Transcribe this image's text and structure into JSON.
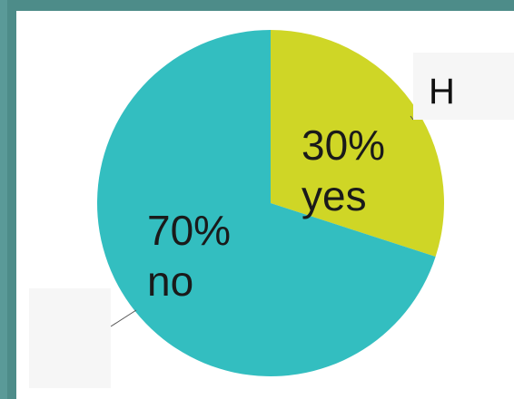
{
  "chart_data": {
    "type": "pie",
    "slices": [
      {
        "label": "yes",
        "value": 30,
        "percent_label": "30%",
        "color": "#cfd626"
      },
      {
        "label": "no",
        "value": 70,
        "percent_label": "70%",
        "color": "#33bec0"
      }
    ],
    "start_angle_deg": 0,
    "direction": "clockwise"
  },
  "callouts": [
    {
      "text": "H"
    },
    {
      "text": ""
    }
  ],
  "colors": {
    "frame": "#4f8f8c",
    "background": "#ffffff"
  }
}
